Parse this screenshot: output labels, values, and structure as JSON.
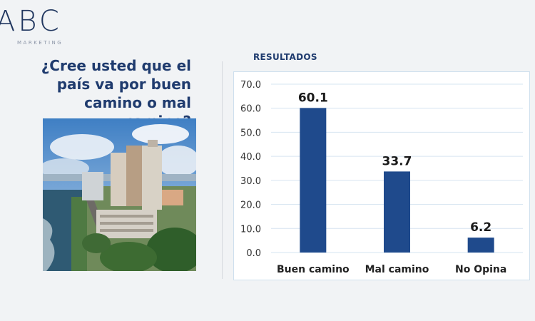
{
  "brand": {
    "logo_text": "ABC",
    "logo_subtitle": "MARKETING"
  },
  "question": "¿Cree usted que el país va por buen camino o mal camino?",
  "results_label": "RESULTADOS",
  "colors": {
    "bar": "#1f4a8c",
    "accent": "#1f3b6e"
  },
  "chart_data": {
    "type": "bar",
    "categories": [
      "Buen camino",
      "Mal camino",
      "No Opina"
    ],
    "values": [
      60.1,
      33.7,
      6.2
    ],
    "y_ticks": [
      "0.0",
      "10.0",
      "20.0",
      "30.0",
      "40.0",
      "50.0",
      "60.0",
      "70.0"
    ],
    "ylim": [
      0,
      70
    ],
    "grid": true,
    "title": "",
    "xlabel": "",
    "ylabel": ""
  }
}
